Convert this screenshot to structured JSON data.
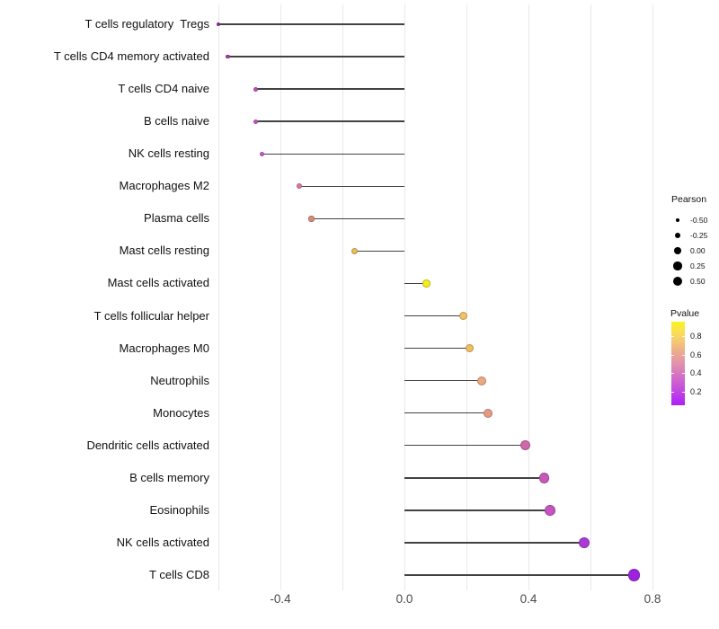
{
  "chart_data": {
    "type": "scatter",
    "style": "lollipop",
    "title": "",
    "xlabel": "",
    "ylabel": "",
    "grid": "vertical-only",
    "xlim": [
      -0.62,
      0.84
    ],
    "baseline": 0.0,
    "x_tick_labels": [
      "-0.4",
      "0.0",
      "0.4",
      "0.8"
    ],
    "x_tick_values": [
      -0.4,
      0.0,
      0.4,
      0.8
    ],
    "x_gridline_values": [
      -0.6,
      -0.4,
      -0.2,
      0.0,
      0.2,
      0.4,
      0.6,
      0.8
    ],
    "rows": [
      {
        "label": "T cells regulatory  Tregs",
        "pearson": -0.6,
        "dot_color": "#8c2d9c"
      },
      {
        "label": "T cells CD4 memory activated",
        "pearson": -0.57,
        "dot_color": "#a23fa8"
      },
      {
        "label": "T cells CD4 naive",
        "pearson": -0.48,
        "dot_color": "#bc50bc"
      },
      {
        "label": "B cells naive",
        "pearson": -0.48,
        "dot_color": "#c156c0"
      },
      {
        "label": "NK cells resting",
        "pearson": -0.46,
        "dot_color": "#c25cc6"
      },
      {
        "label": "Macrophages M2",
        "pearson": -0.34,
        "dot_color": "#d67d92"
      },
      {
        "label": "Plasma cells",
        "pearson": -0.3,
        "dot_color": "#da8b76"
      },
      {
        "label": "Mast cells resting",
        "pearson": -0.16,
        "dot_color": "#e9c04f"
      },
      {
        "label": "Mast cells activated",
        "pearson": 0.07,
        "dot_color": "#f4ef16"
      },
      {
        "label": "T cells follicular helper",
        "pearson": 0.19,
        "dot_color": "#eec45e"
      },
      {
        "label": "Macrophages M0",
        "pearson": 0.21,
        "dot_color": "#efbf5c"
      },
      {
        "label": "Neutrophils",
        "pearson": 0.25,
        "dot_color": "#eaa87d"
      },
      {
        "label": "Monocytes",
        "pearson": 0.27,
        "dot_color": "#e69b80"
      },
      {
        "label": "Dendritic cells activated",
        "pearson": 0.39,
        "dot_color": "#d068ab"
      },
      {
        "label": "B cells memory",
        "pearson": 0.45,
        "dot_color": "#c75ab8"
      },
      {
        "label": "Eosinophils",
        "pearson": 0.47,
        "dot_color": "#c553c2"
      },
      {
        "label": "NK cells activated",
        "pearson": 0.58,
        "dot_color": "#aa3ad4"
      },
      {
        "label": "T cells CD8",
        "pearson": 0.74,
        "dot_color": "#9c22dd"
      }
    ],
    "legend_size": {
      "title": "Pearson",
      "entries": [
        {
          "label": "-0.50",
          "value": -0.5
        },
        {
          "label": "-0.25",
          "value": -0.25
        },
        {
          "label": "0.00",
          "value": 0.0
        },
        {
          "label": "0.25",
          "value": 0.25
        },
        {
          "label": "0.50",
          "value": 0.5
        }
      ]
    },
    "legend_color": {
      "title": "Pvalue",
      "tick_labels": [
        "0.8",
        "0.6",
        "0.4",
        "0.2"
      ],
      "tick_values": [
        0.8,
        0.6,
        0.4,
        0.2
      ],
      "range_top": 0.96,
      "range_bottom": 0.05,
      "gradient_top_to_bottom": [
        "#fdf320",
        "#f8d763",
        "#eeb189",
        "#e292ab",
        "#d26cc9",
        "#c247e2",
        "#ac1ef8"
      ]
    },
    "stem_color": "#424242",
    "gridline_color": "#e9e9e9"
  }
}
